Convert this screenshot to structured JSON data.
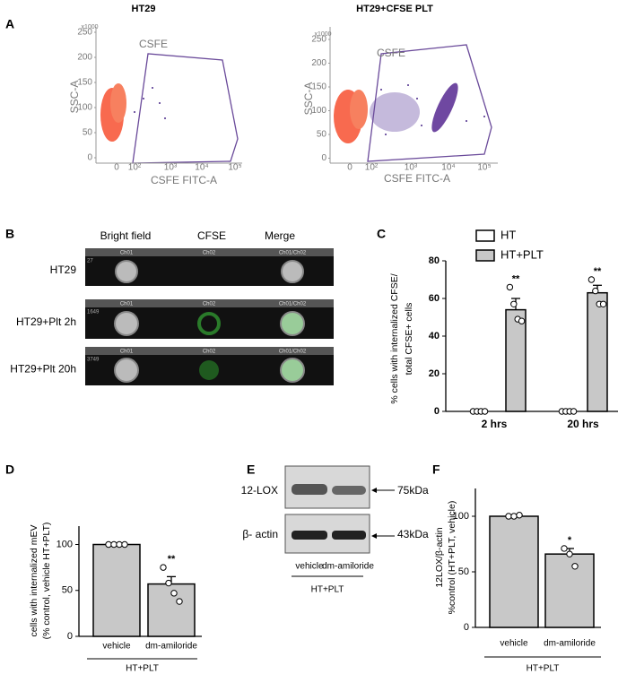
{
  "panel_labels": [
    "A",
    "B",
    "C",
    "D",
    "E",
    "F"
  ],
  "flow_plots": [
    {
      "title": "HT29",
      "gate_label": "CSFE",
      "y_label": "SSC-A",
      "x_label": "CSFE FITC-A",
      "y_scale": "x1000",
      "yticks": [
        250,
        200,
        150,
        100,
        50,
        0
      ],
      "xtick_labels": [
        "0",
        "10²",
        "10³",
        "10⁴",
        "10⁵"
      ]
    },
    {
      "title": "HT29+CFSE PLT",
      "gate_label": "CSFE",
      "y_label": "SSC-A",
      "x_label": "CSFE FITC-A",
      "y_scale": "x1000",
      "yticks": [
        250,
        200,
        150,
        100,
        50,
        0
      ],
      "xtick_labels": [
        "0",
        "10²",
        "10³",
        "10⁴",
        "10⁵"
      ]
    }
  ],
  "imaging": {
    "columns": [
      "Bright field",
      "CFSE",
      "Merge"
    ],
    "rows": [
      {
        "label": "HT29",
        "object_id": "27",
        "channels": [
          "Ch01",
          "Ch02",
          "Ch01/Ch02"
        ]
      },
      {
        "label": "HT29+Plt 2h",
        "object_id": "1649",
        "channels": [
          "Ch01",
          "Ch02",
          "Ch01/Ch02"
        ]
      },
      {
        "label": "HT29+Plt 20h",
        "object_id": "3749",
        "channels": [
          "Ch01",
          "Ch02",
          "Ch01/Ch02"
        ]
      }
    ]
  },
  "blot": {
    "bands": [
      {
        "label": "12-LOX",
        "size": "75kDa"
      },
      {
        "label": "β- actin",
        "size": "43kDa"
      }
    ],
    "lanes": [
      "vehicle",
      "dm-amiloride"
    ],
    "group": "HT+PLT"
  },
  "chart_data": [
    {
      "type": "bar",
      "ylabel": [
        "% cells with internalized CFSE/",
        "total CFSE+ cells"
      ],
      "categories": [
        "2 hrs",
        "20 hrs"
      ],
      "series": [
        {
          "name": "HT",
          "color": "#ffffff",
          "values": [
            0,
            0
          ],
          "errors": [
            0,
            0
          ],
          "points": [
            [
              0,
              0,
              0,
              0
            ],
            [
              0,
              0,
              0,
              0
            ]
          ]
        },
        {
          "name": "HT+PLT",
          "color": "#c8c8c8",
          "values": [
            54,
            63
          ],
          "errors": [
            6,
            4
          ],
          "points": [
            [
              66,
              57,
              49,
              48
            ],
            [
              70,
              64,
              57,
              57
            ]
          ],
          "significance": [
            "**",
            "**"
          ]
        }
      ],
      "ylim": [
        0,
        80
      ],
      "yticks": [
        0,
        20,
        40,
        60,
        80
      ]
    },
    {
      "type": "bar",
      "ylabel": [
        "cells with internalized mEV",
        "(% control, vehicle HT+PLT)"
      ],
      "categories": [
        "vehicle",
        "dm-amiloride"
      ],
      "group_label": "HT+PLT",
      "color": "#c8c8c8",
      "values": [
        100,
        57
      ],
      "errors": [
        1,
        8
      ],
      "points": [
        [
          100,
          100,
          100,
          100
        ],
        [
          75,
          58,
          47,
          38
        ]
      ],
      "significance": [
        null,
        "**"
      ],
      "ylim": [
        0,
        120
      ],
      "yticks": [
        0,
        50,
        100
      ]
    },
    {
      "type": "bar",
      "ylabel": [
        "12LOX/β-actin",
        "%control (HT+PLT, vehicle)"
      ],
      "categories": [
        "vehicle",
        "dm-amiloride"
      ],
      "group_label": "HT+PLT",
      "color": "#c8c8c8",
      "values": [
        100,
        66
      ],
      "errors": [
        1,
        5
      ],
      "points": [
        [
          100,
          100,
          101
        ],
        [
          71,
          66,
          55
        ]
      ],
      "significance": [
        null,
        "*"
      ],
      "ylim": [
        0,
        125
      ],
      "yticks": [
        0,
        50,
        100
      ]
    }
  ]
}
